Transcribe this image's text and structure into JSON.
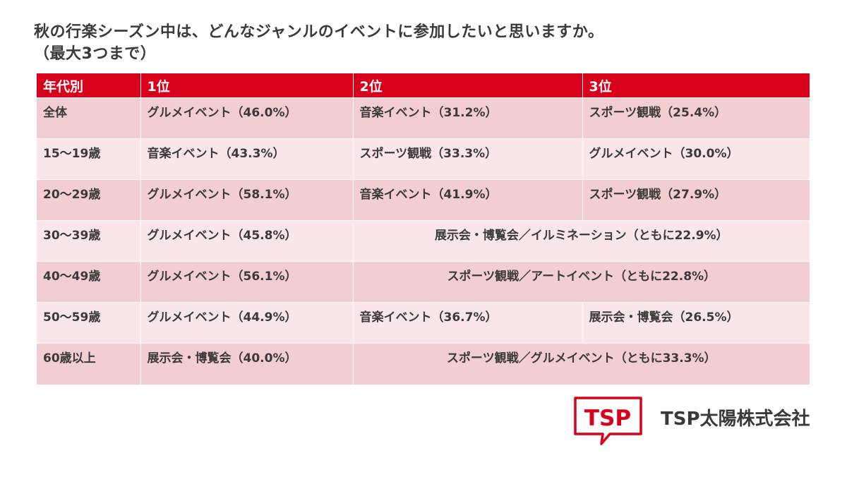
{
  "title_line1": "秋の行楽シーズン中は、どんなジャンルのイベントに参加したいと思いますか。",
  "title_line2": "（最大3つまで）",
  "headers": [
    "年代別",
    "1位",
    "2位",
    "3位"
  ],
  "rows": [
    {
      "age": "全体",
      "first": "グルメイベント（46.0%）",
      "second": "音楽イベント（31.2%）",
      "third": "スポーツ観戦（25.4%）"
    },
    {
      "age": "15〜19歳",
      "first": "音楽イベント（43.3%）",
      "second": "スポーツ観戦（33.3%）",
      "third": "グルメイベント（30.0%）"
    },
    {
      "age": "20〜29歳",
      "first": "グルメイベント（58.1%）",
      "second": "音楽イベント（41.9%）",
      "third": "スポーツ観戦（27.9%）"
    },
    {
      "age": "30〜39歳",
      "first": "グルメイベント（45.8%）",
      "merged": "展示会・博覧会／イルミネーション（ともに22.9%）"
    },
    {
      "age": "40〜49歳",
      "first": "グルメイベント（56.1%）",
      "merged": "スポーツ観戦／アートイベント（ともに22.8%）"
    },
    {
      "age": "50〜59歳",
      "first": "グルメイベント（44.9%）",
      "second": "音楽イベント（36.7%）",
      "third": "展示会・博覧会（26.5%）"
    },
    {
      "age": "60歳以上",
      "first": "展示会・博覧会（40.0%）",
      "merged": "スポーツ観戦／グルメイベント（ともに33.3%）"
    }
  ],
  "chart_data": {
    "type": "table",
    "columns": [
      "年代別",
      "1位",
      "2位",
      "3位"
    ],
    "rows": [
      [
        "全体",
        "グルメイベント（46.0%）",
        "音楽イベント（31.2%）",
        "スポーツ観戦（25.4%）"
      ],
      [
        "15〜19歳",
        "音楽イベント（43.3%）",
        "スポーツ観戦（33.3%）",
        "グルメイベント（30.0%）"
      ],
      [
        "20〜29歳",
        "グルメイベント（58.1%）",
        "音楽イベント（41.9%）",
        "スポーツ観戦（27.9%）"
      ],
      [
        "30〜39歳",
        "グルメイベント（45.8%）",
        "展示会・博覧会／イルミネーション（ともに22.9%）",
        "展示会・博覧会／イルミネーション（ともに22.9%）"
      ],
      [
        "40〜49歳",
        "グルメイベント（56.1%）",
        "スポーツ観戦／アートイベント（ともに22.8%）",
        "スポーツ観戦／アートイベント（ともに22.8%）"
      ],
      [
        "50〜59歳",
        "グルメイベント（44.9%）",
        "音楽イベント（36.7%）",
        "展示会・博覧会（26.5%）"
      ],
      [
        "60歳以上",
        "展示会・博覧会（40.0%）",
        "スポーツ観戦／グルメイベント（ともに33.3%）",
        "スポーツ観戦／グルメイベント（ともに33.3%）"
      ]
    ]
  },
  "colors": {
    "header_bg": "#d9001b",
    "row_odd": "#f2cdd2",
    "row_even": "#fae6e8",
    "brand_red": "#d9001b"
  },
  "logo": {
    "mark_text": "TSP",
    "company": "TSP太陽株式会社",
    "icon": "speech-bubble-logo-icon"
  }
}
